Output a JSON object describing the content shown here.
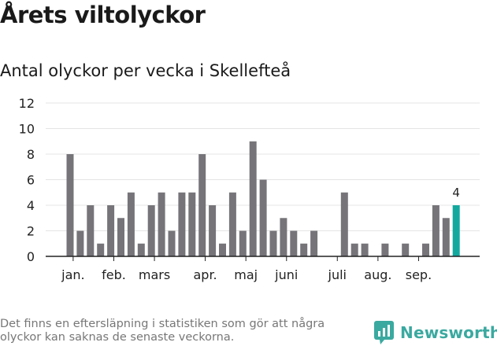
{
  "title": "Årets viltolyckor",
  "subtitle": "Antal olyckor per vecka i Skellefteå",
  "footnote": "Det finns en eftersläpning i statistiken som gör att några olyckor kan saknas de senaste veckorna.",
  "brand": {
    "name": "Newsworthy",
    "icon": "newsworthy-logo-icon"
  },
  "colors": {
    "bar": "#767479",
    "highlight": "#13a89e",
    "grid": "#e4e4e4",
    "axis": "#222222",
    "brand": "#3aa9a0"
  },
  "chart_data": {
    "type": "bar",
    "title": "Antal olyckor per vecka i Skellefteå",
    "xlabel": "",
    "ylabel": "",
    "ylim": [
      0,
      12
    ],
    "yticks": [
      0,
      2,
      4,
      6,
      8,
      10,
      12
    ],
    "grid": true,
    "weeks": [
      1,
      2,
      3,
      4,
      5,
      6,
      7,
      8,
      9,
      10,
      11,
      12,
      13,
      14,
      15,
      16,
      17,
      18,
      19,
      20,
      21,
      22,
      23,
      24,
      25,
      26,
      27,
      28,
      29,
      30,
      31,
      32,
      33,
      34,
      35,
      36,
      37,
      38,
      39
    ],
    "values": [
      8,
      2,
      4,
      1,
      4,
      3,
      5,
      1,
      4,
      5,
      2,
      5,
      5,
      8,
      4,
      1,
      5,
      2,
      9,
      6,
      2,
      3,
      2,
      1,
      2,
      0,
      0,
      5,
      1,
      1,
      0,
      1,
      0,
      1,
      0,
      1,
      4,
      3,
      4
    ],
    "highlight_index": 38,
    "highlight_label": "4",
    "month_labels": [
      {
        "label": "jan.",
        "week": 1.3
      },
      {
        "label": "feb.",
        "week": 5.3
      },
      {
        "label": "mars",
        "week": 9.3
      },
      {
        "label": "apr.",
        "week": 14.3
      },
      {
        "label": "maj",
        "week": 18.3
      },
      {
        "label": "juni",
        "week": 22.3
      },
      {
        "label": "juli",
        "week": 27.3
      },
      {
        "label": "aug.",
        "week": 31.3
      },
      {
        "label": "sep.",
        "week": 35.3
      }
    ]
  }
}
